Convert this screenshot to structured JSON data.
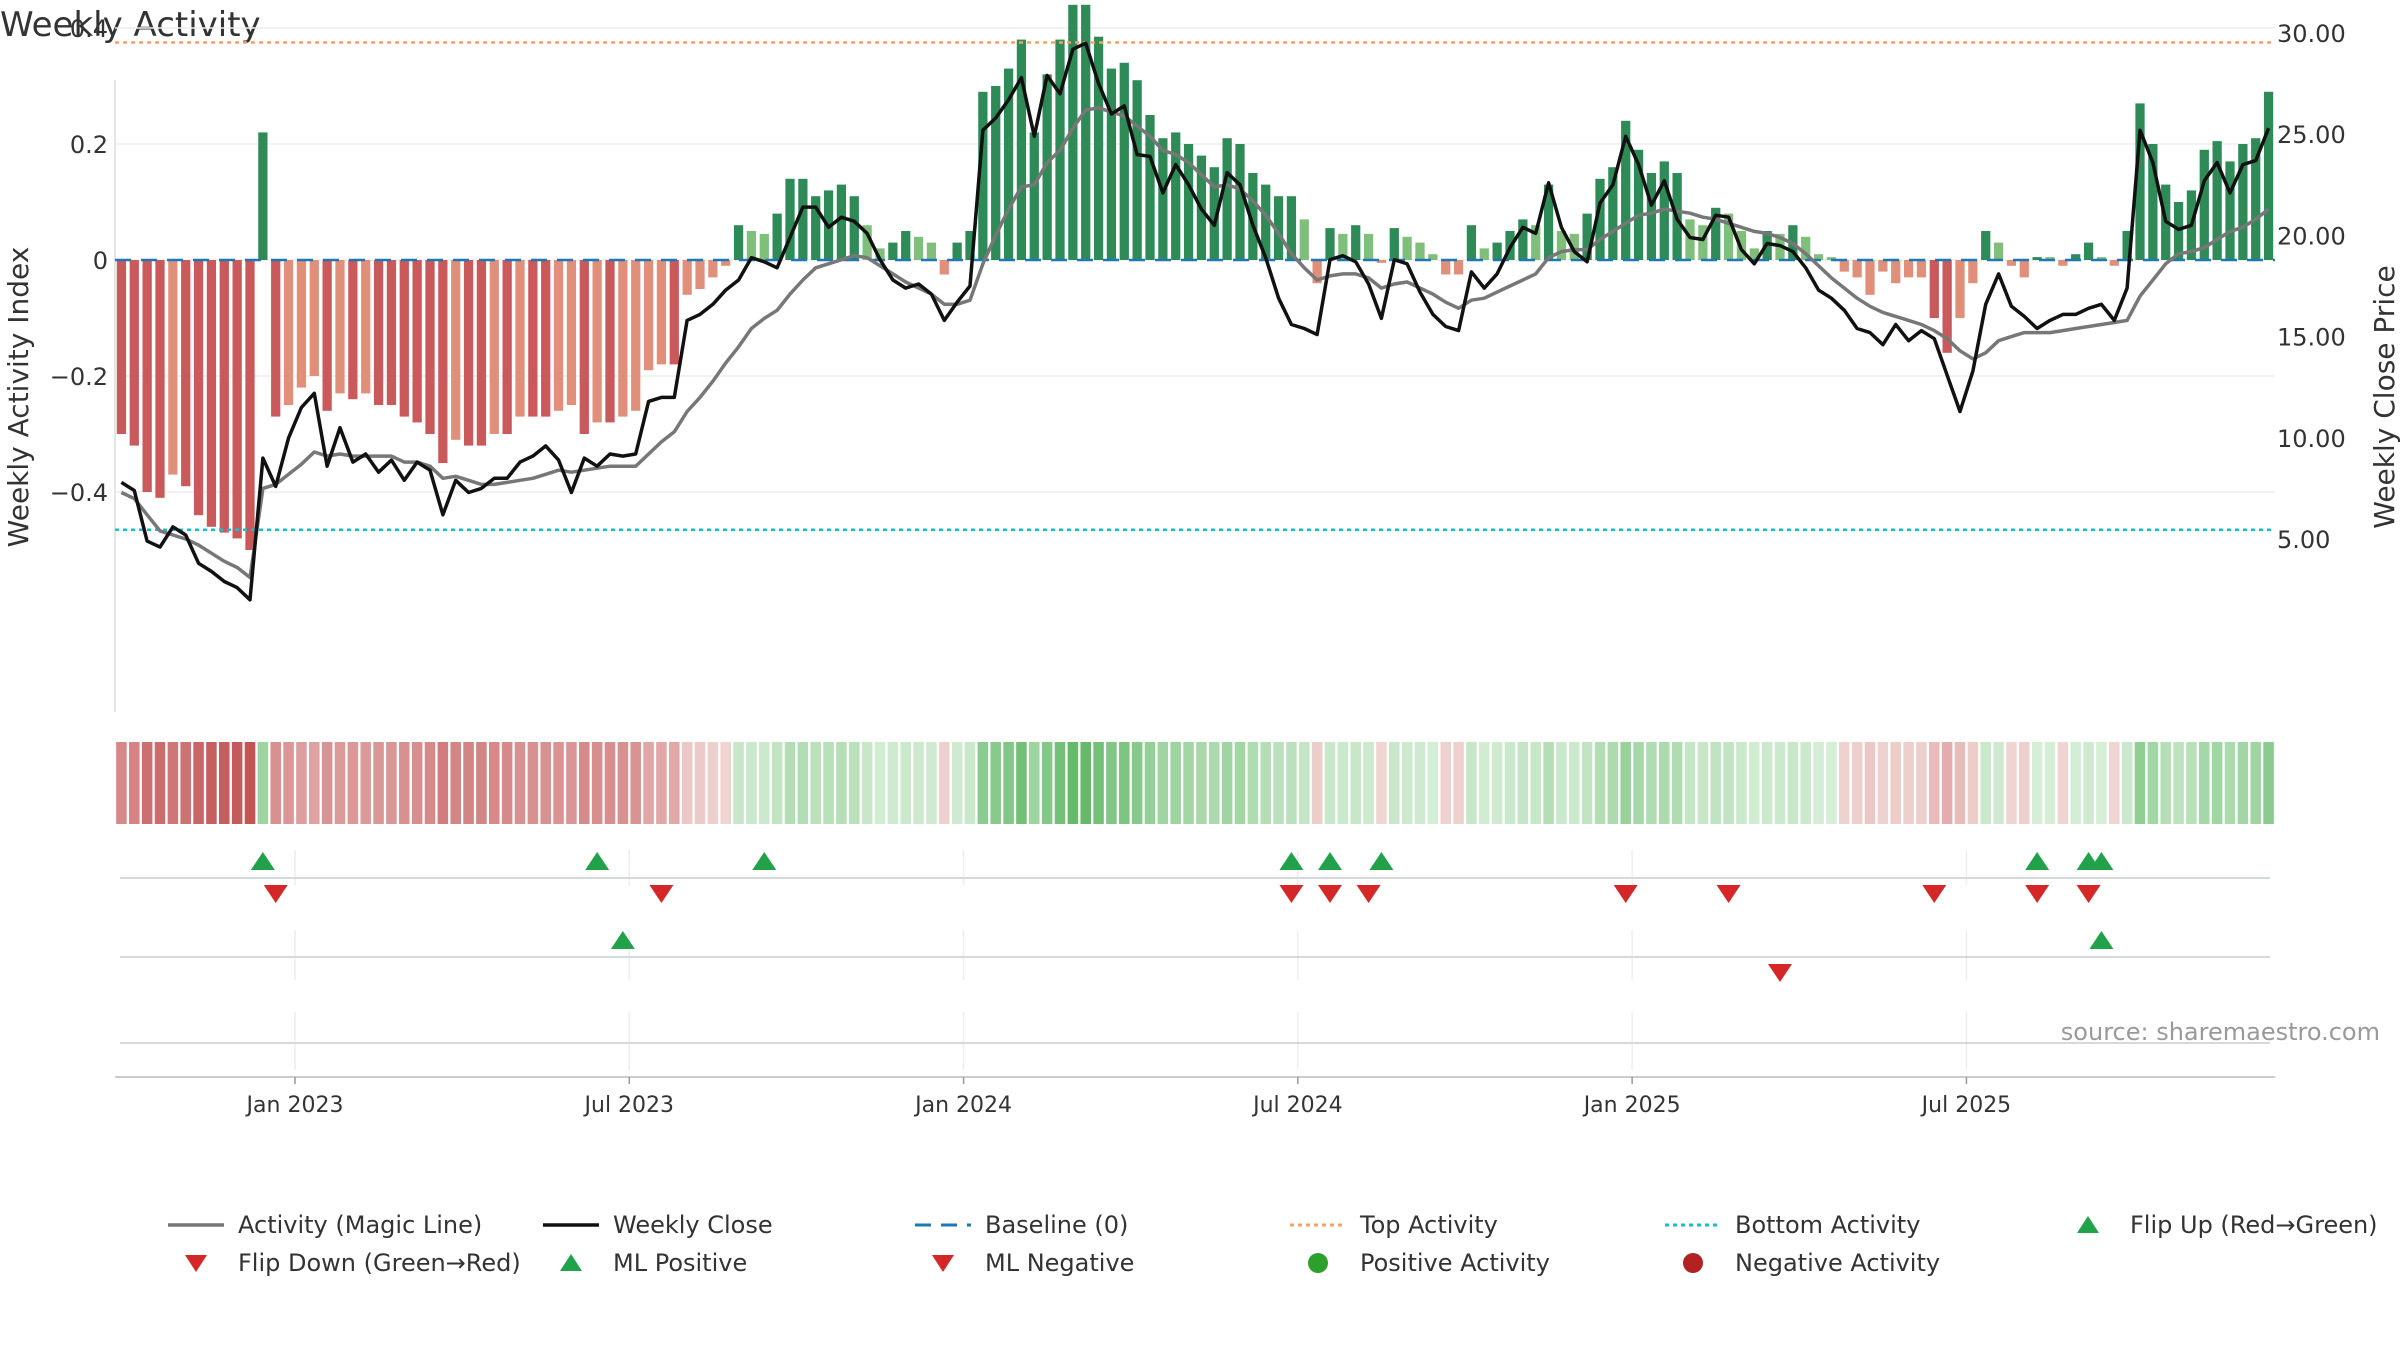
{
  "chart_data": {
    "title": "Weekly Activity",
    "type": "bar",
    "ylabel_left": "Weekly Activity Index",
    "ylabel_right": "Weekly Close Price",
    "source": "source: sharemaestro.com",
    "grid": true,
    "ylim_left": [
      -0.54,
      0.54
    ],
    "ylim_right": [
      0.5,
      31.5
    ],
    "yticks_left": [
      {
        "value": 0.4,
        "label": "0.4"
      },
      {
        "value": 0.2,
        "label": "0.2"
      },
      {
        "value": 0,
        "label": "0"
      },
      {
        "value": -0.2,
        "label": "−0.2"
      },
      {
        "value": -0.4,
        "label": "−0.4"
      }
    ],
    "yticks_right": [
      "30.00",
      "25.00",
      "20.00",
      "15.00",
      "10.00",
      "5.00"
    ],
    "x_ticks": [
      {
        "label": "Jan 2023",
        "week": 14
      },
      {
        "label": "Jul 2023",
        "week": 40
      },
      {
        "label": "Jan 2024",
        "week": 66
      },
      {
        "label": "Jul 2024",
        "week": 92
      },
      {
        "label": "Jan 2025",
        "week": 118
      },
      {
        "label": "Jul 2025",
        "week": 144
      }
    ],
    "top_activity": 0.375,
    "bottom_activity": -0.465,
    "activity": [
      -0.3,
      -0.32,
      -0.4,
      -0.41,
      -0.37,
      -0.39,
      -0.44,
      -0.46,
      -0.47,
      -0.48,
      -0.5,
      0.22,
      -0.27,
      -0.25,
      -0.22,
      -0.2,
      -0.26,
      -0.23,
      -0.24,
      -0.23,
      -0.25,
      -0.25,
      -0.27,
      -0.28,
      -0.3,
      -0.35,
      -0.31,
      -0.32,
      -0.32,
      -0.3,
      -0.3,
      -0.27,
      -0.27,
      -0.27,
      -0.26,
      -0.25,
      -0.3,
      -0.28,
      -0.28,
      -0.27,
      -0.26,
      -0.19,
      -0.18,
      -0.18,
      -0.06,
      -0.05,
      -0.03,
      -0.01,
      0.06,
      0.05,
      0.045,
      0.08,
      0.14,
      0.14,
      0.11,
      0.12,
      0.13,
      0.11,
      0.06,
      0.02,
      0.03,
      0.05,
      0.04,
      0.03,
      -0.025,
      0.03,
      0.05,
      0.29,
      0.3,
      0.33,
      0.38,
      0.22,
      0.32,
      0.38,
      0.44,
      0.44,
      0.385,
      0.33,
      0.34,
      0.31,
      0.25,
      0.21,
      0.22,
      0.2,
      0.18,
      0.16,
      0.21,
      0.2,
      0.15,
      0.13,
      0.11,
      0.11,
      0.07,
      -0.04,
      0.055,
      0.045,
      0.06,
      0.045,
      -0.005,
      0.055,
      0.04,
      0.03,
      0.01,
      -0.025,
      -0.025,
      0.06,
      0.02,
      0.03,
      0.05,
      0.07,
      0.06,
      0.13,
      0.05,
      0.045,
      0.08,
      0.14,
      0.16,
      0.24,
      0.19,
      0.15,
      0.17,
      0.15,
      0.07,
      0.06,
      0.09,
      0.08,
      0.05,
      0.02,
      0.05,
      0.045,
      0.06,
      0.04,
      0.01,
      0.005,
      -0.02,
      -0.03,
      -0.06,
      -0.02,
      -0.04,
      -0.03,
      -0.03,
      -0.1,
      -0.16,
      -0.1,
      -0.04,
      0.05,
      0.03,
      -0.01,
      -0.03,
      0.005,
      0.005,
      -0.01,
      0.01,
      0.03,
      0.005,
      -0.01,
      0.05,
      0.27,
      0.2,
      0.13,
      0.1,
      0.12,
      0.19,
      0.205,
      0.17,
      0.2,
      0.21,
      0.29
    ],
    "series": [
      {
        "name": "Weekly Close",
        "values": [
          7.8,
          7.4,
          4.9,
          4.6,
          5.6,
          5.2,
          3.8,
          3.4,
          2.9,
          2.6,
          2.0,
          9.0,
          7.6,
          10.0,
          11.5,
          12.2,
          8.6,
          10.5,
          8.8,
          9.2,
          8.3,
          8.9,
          7.9,
          8.8,
          8.4,
          6.2,
          7.9,
          7.3,
          7.5,
          8.0,
          8.0,
          8.8,
          9.1,
          9.6,
          8.9,
          7.3,
          9.0,
          8.6,
          9.2,
          9.1,
          9.2,
          11.8,
          12.0,
          12.0,
          15.8,
          16.1,
          16.6,
          17.3,
          17.8,
          18.9,
          18.7,
          18.4,
          19.9,
          21.4,
          21.4,
          20.4,
          20.9,
          20.7,
          20.1,
          18.8,
          17.8,
          17.4,
          17.6,
          17.1,
          15.8,
          16.7,
          17.5,
          25.2,
          25.8,
          26.7,
          27.8,
          24.9,
          27.9,
          27.0,
          29.2,
          29.5,
          27.5,
          26.0,
          26.4,
          24.0,
          23.9,
          22.1,
          23.5,
          22.5,
          21.3,
          20.5,
          23.1,
          22.5,
          20.5,
          18.9,
          16.9,
          15.6,
          15.4,
          15.1,
          18.8,
          19.0,
          18.7,
          17.6,
          15.9,
          18.8,
          18.6,
          17.2,
          16.1,
          15.5,
          15.3,
          18.2,
          17.4,
          18.1,
          19.4,
          20.4,
          20.1,
          22.6,
          20.4,
          19.2,
          18.7,
          21.6,
          22.5,
          24.9,
          23.5,
          21.5,
          22.7,
          20.8,
          19.9,
          19.8,
          21.0,
          20.9,
          19.3,
          18.6,
          19.6,
          19.5,
          19.2,
          18.4,
          17.3,
          16.9,
          16.3,
          15.4,
          15.2,
          14.6,
          15.6,
          14.8,
          15.3,
          14.9,
          13.1,
          11.3,
          13.3,
          16.6,
          18.1,
          16.5,
          16.0,
          15.4,
          15.8,
          16.1,
          16.1,
          16.4,
          16.6,
          15.8,
          17.4,
          25.2,
          23.6,
          20.7,
          20.3,
          20.5,
          22.7,
          23.6,
          22.1,
          23.5,
          23.7,
          25.3
        ]
      },
      {
        "name": "Activity (Magic Line)",
        "values": [
          7.3,
          7.0,
          6.2,
          5.4,
          5.2,
          5.0,
          4.7,
          4.3,
          3.9,
          3.6,
          3.1,
          7.5,
          7.7,
          8.2,
          8.7,
          9.3,
          9.1,
          9.2,
          9.1,
          9.1,
          9.1,
          9.1,
          8.8,
          8.8,
          8.6,
          8.0,
          8.1,
          7.9,
          7.7,
          7.7,
          7.8,
          7.9,
          8.0,
          8.2,
          8.4,
          8.3,
          8.4,
          8.5,
          8.6,
          8.6,
          8.6,
          9.2,
          9.8,
          10.3,
          11.3,
          12.0,
          12.8,
          13.7,
          14.5,
          15.4,
          15.9,
          16.3,
          17.1,
          17.8,
          18.4,
          18.6,
          18.8,
          19.0,
          18.9,
          18.5,
          18.1,
          17.7,
          17.4,
          17.1,
          16.6,
          16.6,
          16.8,
          18.6,
          20.0,
          21.3,
          22.4,
          22.5,
          23.6,
          24.2,
          25.3,
          26.2,
          26.3,
          26.1,
          25.9,
          25.4,
          24.9,
          24.2,
          24.0,
          23.6,
          23.0,
          22.4,
          22.5,
          22.3,
          21.7,
          21.0,
          20.1,
          19.1,
          18.4,
          17.8,
          18.0,
          18.1,
          18.1,
          17.9,
          17.4,
          17.6,
          17.7,
          17.4,
          17.1,
          16.7,
          16.4,
          16.8,
          16.9,
          17.2,
          17.5,
          17.8,
          18.1,
          18.9,
          19.2,
          19.3,
          19.3,
          19.8,
          20.2,
          20.6,
          21.0,
          21.1,
          21.3,
          21.2,
          21.1,
          20.9,
          20.8,
          20.6,
          20.4,
          20.2,
          20.1,
          19.9,
          19.6,
          19.1,
          18.5,
          17.9,
          17.4,
          16.9,
          16.5,
          16.2,
          16.0,
          15.8,
          15.6,
          15.3,
          14.9,
          14.3,
          13.9,
          14.2,
          14.8,
          15.0,
          15.2,
          15.2,
          15.2,
          15.3,
          15.4,
          15.5,
          15.6,
          15.7,
          15.8,
          17.0,
          17.8,
          18.6,
          19.1,
          19.2,
          19.4,
          19.8,
          20.2,
          20.4,
          20.8,
          21.3
        ]
      }
    ],
    "flip_up_row1": [
      11,
      37,
      50,
      91,
      94,
      98,
      149,
      153,
      154
    ],
    "flip_down_row1": [
      12,
      42,
      91,
      94,
      97,
      117,
      125,
      141,
      149,
      153
    ],
    "ml_positive_row2": [
      39,
      154
    ],
    "ml_negative_row2": [
      129
    ],
    "colors": {
      "strong_red": "#c9595a",
      "weak_red": "#e0907a",
      "strong_green": "#2e8b57",
      "weak_green": "#7fbf7b",
      "close": "#111111",
      "magic": "#777777",
      "baseline": "#1f77b4",
      "top": "#f4a460",
      "bottom": "#17becf",
      "flip_up": "#21a14a",
      "flip_down": "#d62728",
      "positive_dot": "#2ca02c",
      "negative_dot": "#b22222"
    },
    "legend": [
      {
        "key": "magic",
        "label": "Activity (Magic Line)",
        "symbol": "line",
        "color": "#777777"
      },
      {
        "key": "close",
        "label": "Weekly Close",
        "symbol": "line",
        "color": "#111111"
      },
      {
        "key": "baseline",
        "label": "Baseline (0)",
        "symbol": "dash",
        "color": "#1f77b4"
      },
      {
        "key": "top",
        "label": "Top Activity",
        "symbol": "dot-line",
        "color": "#f4a460"
      },
      {
        "key": "bottom",
        "label": "Bottom Activity",
        "symbol": "dot-line",
        "color": "#17becf"
      },
      {
        "key": "flipup",
        "label": "Flip Up (Red→Green)",
        "symbol": "tri-up",
        "color": "#21a14a"
      },
      {
        "key": "flipdown",
        "label": "Flip Down (Green→Red)",
        "symbol": "tri-down",
        "color": "#d62728"
      },
      {
        "key": "mlpos",
        "label": "ML Positive",
        "symbol": "tri-up",
        "color": "#21a14a"
      },
      {
        "key": "mlneg",
        "label": "ML Negative",
        "symbol": "tri-down",
        "color": "#d62728"
      },
      {
        "key": "posact",
        "label": "Positive Activity",
        "symbol": "circle",
        "color": "#2ca02c"
      },
      {
        "key": "negact",
        "label": "Negative Activity",
        "symbol": "circle",
        "color": "#b22222"
      }
    ]
  }
}
